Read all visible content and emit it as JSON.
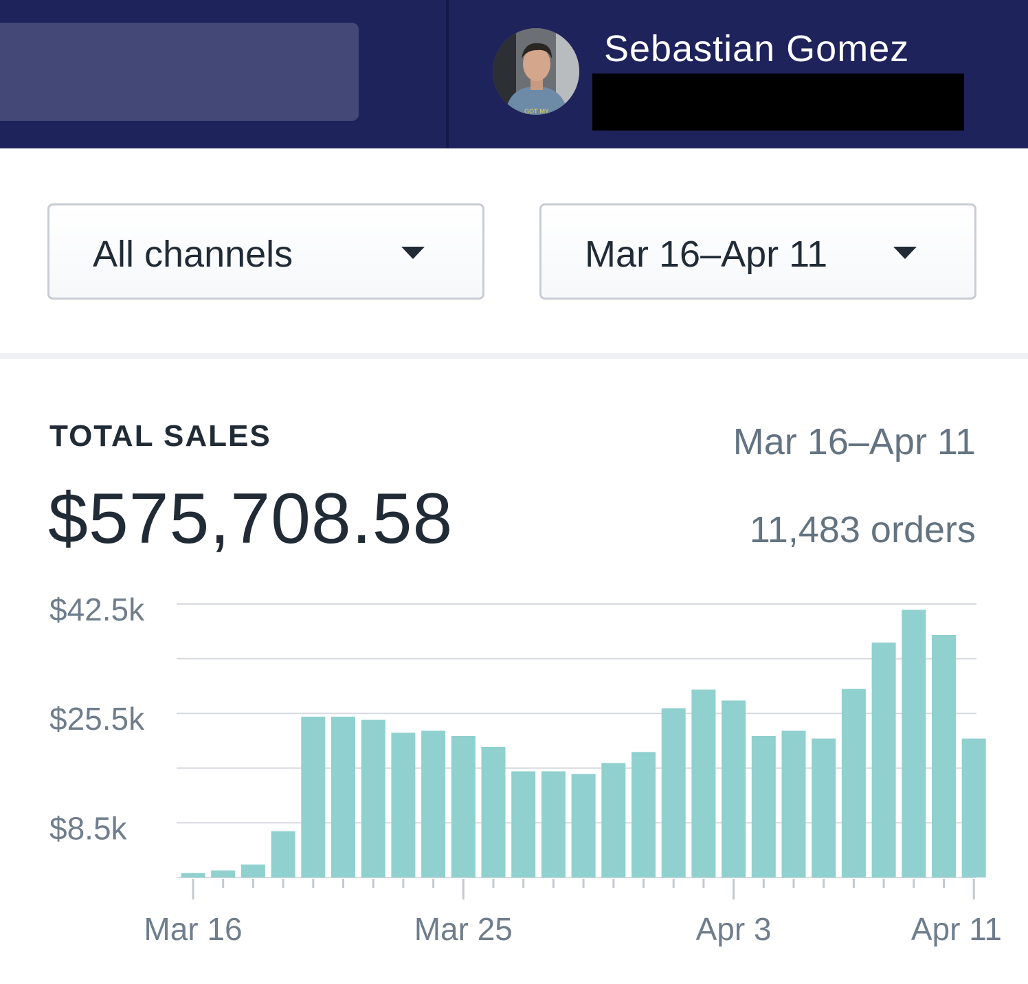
{
  "header": {
    "user_name": "Sebastian Gomez"
  },
  "filters": {
    "channel": "All channels",
    "date_range": "Mar 16–Apr 11"
  },
  "summary": {
    "title": "TOTAL SALES",
    "total": "$575,708.58",
    "date_range": "Mar 16–Apr 11",
    "orders": "11,483 orders"
  },
  "colors": {
    "header_bg": "#1f235b",
    "bar": "#90d0ce",
    "grid": "#d6d9e0",
    "axis_text": "#6f7d8c"
  },
  "chart_data": {
    "type": "bar",
    "title": "TOTAL SALES",
    "ylim": [
      0,
      42500
    ],
    "y_ticks": [
      {
        "value": 8500,
        "label": "$8.5k"
      },
      {
        "value": 25500,
        "label": "$25.5k"
      },
      {
        "value": 42500,
        "label": "$42.5k"
      }
    ],
    "grid_values": [
      8500,
      17000,
      25500,
      34000,
      42500
    ],
    "x_tick_labels": [
      {
        "index": 0,
        "label": "Mar 16"
      },
      {
        "index": 9,
        "label": "Mar 25"
      },
      {
        "index": 18,
        "label": "Apr 3"
      },
      {
        "index": 26,
        "label": "Apr 11"
      }
    ],
    "categories": [
      "Mar 16",
      "Mar 17",
      "Mar 18",
      "Mar 19",
      "Mar 20",
      "Mar 21",
      "Mar 22",
      "Mar 23",
      "Mar 24",
      "Mar 25",
      "Mar 26",
      "Mar 27",
      "Mar 28",
      "Mar 29",
      "Mar 30",
      "Mar 31",
      "Apr 1",
      "Apr 2",
      "Apr 3",
      "Apr 4",
      "Apr 5",
      "Apr 6",
      "Apr 7",
      "Apr 8",
      "Apr 9",
      "Apr 10",
      "Apr 11"
    ],
    "values": [
      700,
      1100,
      2000,
      7200,
      25000,
      25000,
      24500,
      22500,
      22800,
      22000,
      20300,
      16500,
      16500,
      16100,
      17800,
      19500,
      26300,
      29200,
      27500,
      22000,
      22800,
      21600,
      29300,
      36500,
      41600,
      37700,
      21600
    ],
    "grid": true,
    "legend": "none"
  }
}
